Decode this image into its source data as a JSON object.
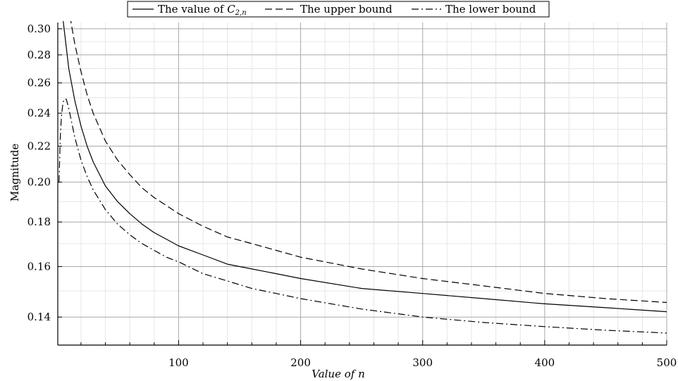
{
  "chart_data": {
    "type": "line",
    "xlabel": "Value of n",
    "ylabel": "Magnitude",
    "xlim": [
      1,
      500
    ],
    "ylim": [
      0.13,
      0.305
    ],
    "y_scale": "log",
    "x_ticks": [
      100,
      200,
      300,
      400,
      500
    ],
    "y_ticks": [
      0.14,
      0.16,
      0.18,
      0.2,
      0.22,
      0.24,
      0.26,
      0.28,
      0.3
    ],
    "y_tick_labels": [
      "0.14",
      "0.16",
      "0.18",
      "0.20",
      "0.22",
      "0.24",
      "0.26",
      "0.28",
      "0.30"
    ],
    "grid": true,
    "legend_position": "top-center",
    "legend": [
      {
        "name": "The value of C2,n",
        "prefix": "The value of ",
        "math_main": "C",
        "math_sub": "2,n"
      },
      {
        "name": "The upper bound"
      },
      {
        "name": "The lower bound"
      }
    ],
    "series": [
      {
        "name": "The value of C2,n",
        "style": "solid",
        "x": [
          5,
          10,
          15,
          20,
          25,
          30,
          40,
          50,
          60,
          70,
          80,
          90,
          100,
          120,
          140,
          160,
          180,
          200,
          250,
          300,
          350,
          400,
          450,
          500
        ],
        "values": [
          0.31,
          0.27,
          0.248,
          0.232,
          0.22,
          0.211,
          0.198,
          0.19,
          0.184,
          0.179,
          0.175,
          0.172,
          0.169,
          0.165,
          0.161,
          0.159,
          0.157,
          0.155,
          0.151,
          0.149,
          0.147,
          0.145,
          0.1435,
          0.142
        ]
      },
      {
        "name": "The upper bound",
        "style": "dashed",
        "x": [
          11,
          15,
          20,
          25,
          30,
          40,
          50,
          60,
          70,
          80,
          90,
          100,
          120,
          140,
          160,
          180,
          200,
          250,
          300,
          350,
          400,
          450,
          500
        ],
        "values": [
          0.31,
          0.288,
          0.268,
          0.252,
          0.24,
          0.223,
          0.212,
          0.204,
          0.197,
          0.192,
          0.188,
          0.184,
          0.178,
          0.173,
          0.17,
          0.167,
          0.164,
          0.159,
          0.155,
          0.152,
          0.149,
          0.147,
          0.1455
        ]
      },
      {
        "name": "The lower bound",
        "style": "dashdot",
        "x": [
          2,
          3,
          4,
          5,
          6,
          8,
          10,
          15,
          20,
          25,
          30,
          40,
          50,
          60,
          70,
          80,
          90,
          100,
          120,
          140,
          160,
          180,
          200,
          250,
          300,
          350,
          400,
          450,
          500
        ],
        "values": [
          0.2,
          0.225,
          0.238,
          0.245,
          0.249,
          0.249,
          0.243,
          0.225,
          0.212,
          0.203,
          0.196,
          0.186,
          0.179,
          0.174,
          0.17,
          0.167,
          0.164,
          0.162,
          0.157,
          0.154,
          0.151,
          0.149,
          0.147,
          0.143,
          0.14,
          0.138,
          0.1365,
          0.1352,
          0.1342
        ]
      }
    ]
  }
}
